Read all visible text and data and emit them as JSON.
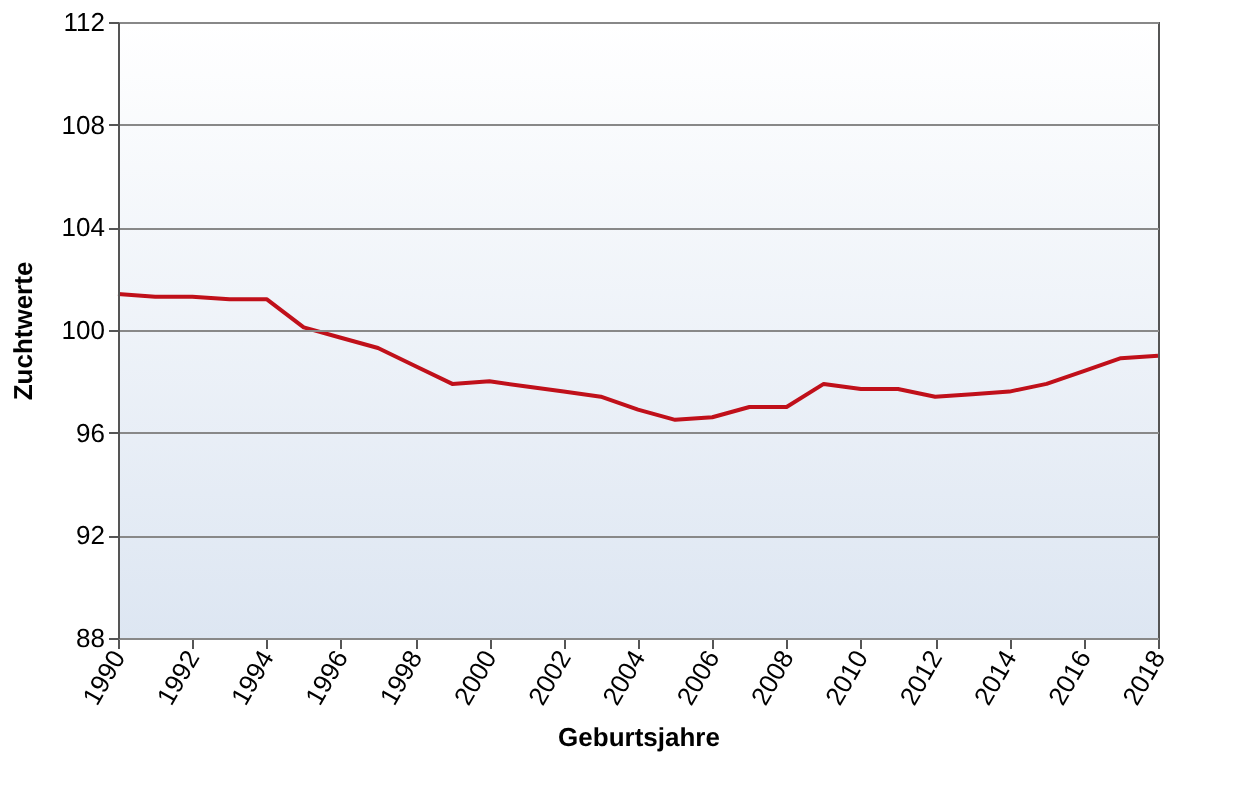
{
  "chart_data": {
    "type": "line",
    "xlabel": "Geburtsjahre",
    "ylabel": "Zuchtwerte",
    "x": [
      1990,
      1991,
      1992,
      1993,
      1994,
      1995,
      1996,
      1997,
      1998,
      1999,
      2000,
      2001,
      2002,
      2003,
      2004,
      2005,
      2006,
      2007,
      2008,
      2009,
      2010,
      2011,
      2012,
      2013,
      2014,
      2015,
      2016,
      2017,
      2018
    ],
    "series": [
      {
        "color": "#c0101a",
        "values": [
          101.4,
          101.3,
          101.3,
          101.2,
          101.2,
          100.1,
          99.7,
          99.3,
          98.6,
          97.9,
          98.0,
          97.8,
          97.6,
          97.4,
          96.9,
          96.5,
          96.6,
          97.0,
          97.0,
          97.9,
          97.7,
          97.7,
          97.4,
          97.5,
          97.6,
          97.9,
          98.4,
          98.9,
          99.0
        ]
      }
    ],
    "xlim": [
      1990,
      2018
    ],
    "xticks": [
      1990,
      1992,
      1994,
      1996,
      1998,
      2000,
      2002,
      2004,
      2006,
      2008,
      2010,
      2012,
      2014,
      2016,
      2018
    ],
    "ylim": [
      88,
      112
    ],
    "yticks": [
      88,
      92,
      96,
      100,
      104,
      108,
      112
    ],
    "grid": "y",
    "marker": "none",
    "line_style": "solid"
  }
}
